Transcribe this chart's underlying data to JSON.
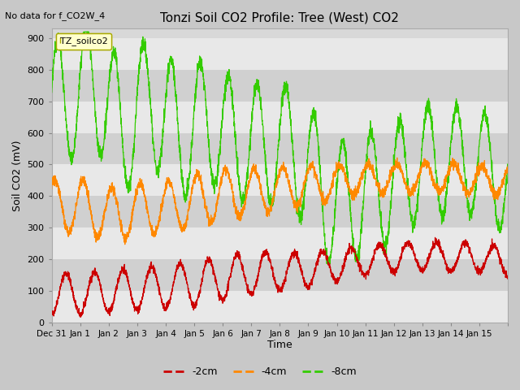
{
  "title": "Tonzi Soil CO2 Profile: Tree (West) CO2",
  "no_data_text": "No data for f_CO2W_4",
  "legend_box_text": "TZ_soilco2",
  "ylabel": "Soil CO2 (mV)",
  "xlabel": "Time",
  "ylim": [
    0,
    930
  ],
  "yticks": [
    0,
    100,
    200,
    300,
    400,
    500,
    600,
    700,
    800,
    900
  ],
  "colors": {
    "red": "#cc0000",
    "orange": "#ff8800",
    "green": "#33cc00"
  },
  "line_labels": [
    "-2cm",
    "-4cm",
    "-8cm"
  ],
  "xtick_positions": [
    -1,
    0,
    1,
    2,
    3,
    4,
    5,
    6,
    7,
    8,
    9,
    10,
    11,
    12,
    13,
    14,
    15
  ],
  "xtick_labels": [
    "Dec 31",
    "Jan 1",
    "Jan 2",
    "Jan 3",
    "Jan 4",
    "Jan 5",
    "Jan 6",
    "Jan 7",
    "Jan 8",
    "Jan 9",
    "Jan 10",
    "Jan 11",
    "Jan 12",
    "Jan 13",
    "Jan 14",
    "Jan 15",
    ""
  ]
}
